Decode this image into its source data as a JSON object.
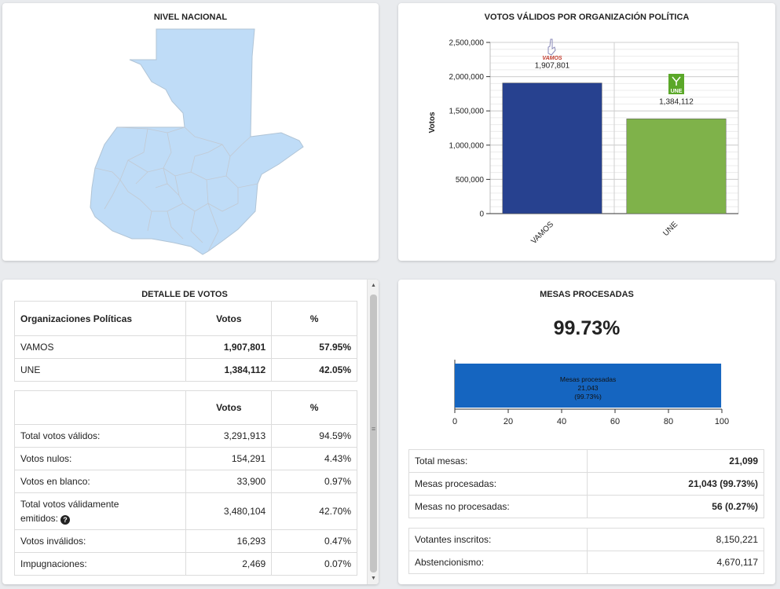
{
  "map_panel": {
    "title": "NIVEL NACIONAL"
  },
  "chart_panel": {
    "title": "VOTOS VÁLIDOS POR ORGANIZACIÓN POLÍTICA",
    "party_logos": {
      "vamos": "VAMOS",
      "une": "UNE"
    }
  },
  "chart_data": {
    "type": "bar",
    "title": "VOTOS VÁLIDOS POR ORGANIZACIÓN POLÍTICA",
    "ylabel": "Votos",
    "xlabel": "",
    "categories": [
      "VAMOS",
      "UNE"
    ],
    "values": [
      1907801,
      1384112
    ],
    "value_labels": [
      "1,907,801",
      "1,384,112"
    ],
    "colors": [
      "#27418f",
      "#7fb24a"
    ],
    "ylim": [
      0,
      2500000
    ],
    "yticks": [
      0,
      500000,
      1000000,
      1500000,
      2000000,
      2500000
    ],
    "ytick_labels": [
      "0",
      "500,000",
      "1,000,000",
      "1,500,000",
      "2,000,000",
      "2,500,000"
    ],
    "grid": true,
    "legend": "none"
  },
  "detail_panel": {
    "title": "DETALLE DE VOTOS",
    "parties_table": {
      "headers": [
        "Organizaciones Políticas",
        "Votos",
        "%"
      ],
      "rows": [
        {
          "name": "VAMOS",
          "votes": "1,907,801",
          "pct": "57.95%"
        },
        {
          "name": "UNE",
          "votes": "1,384,112",
          "pct": "42.05%"
        }
      ]
    },
    "summary_table": {
      "headers": [
        "",
        "Votos",
        "%"
      ],
      "rows": [
        {
          "label": "Total votos válidos:",
          "votes": "3,291,913",
          "pct": "94.59%"
        },
        {
          "label": "Votos nulos:",
          "votes": "154,291",
          "pct": "4.43%"
        },
        {
          "label": "Votos en blanco:",
          "votes": "33,900",
          "pct": "0.97%"
        },
        {
          "label": "Total votos válidamente",
          "label2": "emitidos:",
          "votes": "3,480,104",
          "pct": "42.70%"
        },
        {
          "label": "Votos inválidos:",
          "votes": "16,293",
          "pct": "0.47%"
        },
        {
          "label": "Impugnaciones:",
          "votes": "2,469",
          "pct": "0.07%"
        }
      ]
    },
    "help_icon": "?"
  },
  "mesas_panel": {
    "title": "MESAS PROCESADAS",
    "big_percent": "99.73%",
    "bar": {
      "label_line1": "Mesas procesadas",
      "label_line2": "21,043",
      "label_line3": "(99.73%)",
      "value": 99.73,
      "xticks": [
        "0",
        "20",
        "40",
        "60",
        "80",
        "100"
      ],
      "color": "#1565c0"
    },
    "table1": [
      {
        "label": "Total mesas:",
        "value": "21,099"
      },
      {
        "label": "Mesas procesadas:",
        "value": "21,043 (99.73%)"
      },
      {
        "label": "Mesas no procesadas:",
        "value": "56 (0.27%)"
      }
    ],
    "table2": [
      {
        "label": "Votantes inscritos:",
        "value": "8,150,221"
      },
      {
        "label": "Abstencionismo:",
        "value": "4,670,117"
      }
    ]
  }
}
